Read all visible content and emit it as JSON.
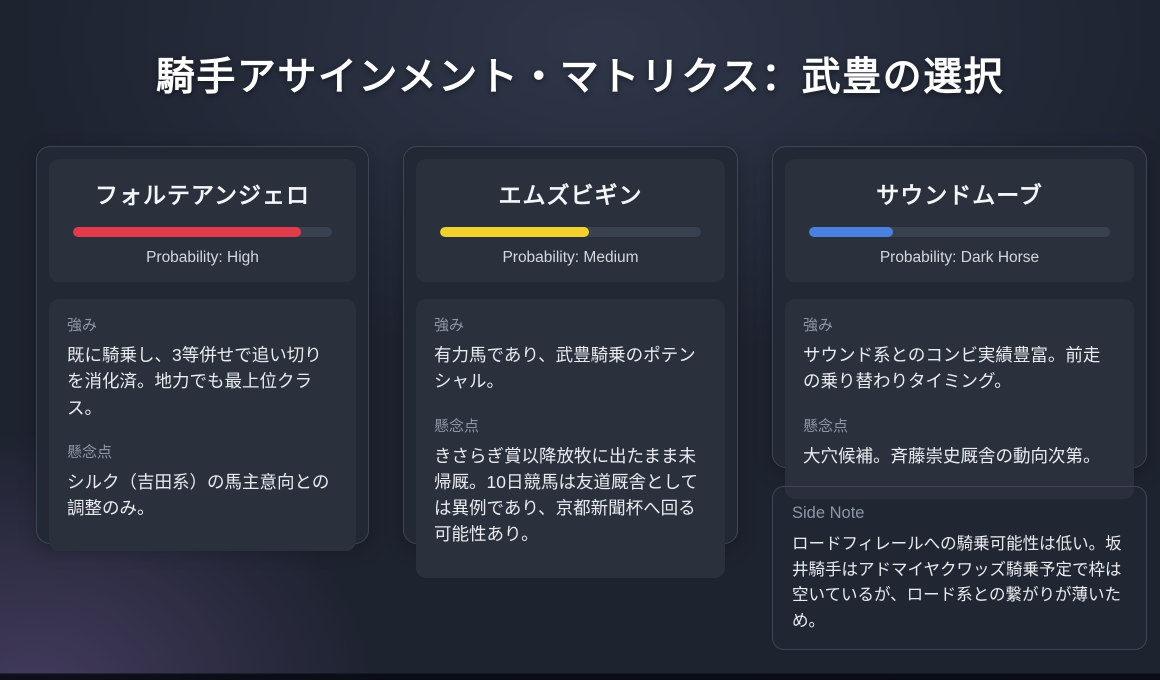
{
  "title": "騎手アサインメント・マトリクス：武豊の選択",
  "section_labels": {
    "strengths": "強み",
    "concerns": "懸念点"
  },
  "cards": [
    {
      "name": "フォルテアンジェロ",
      "probability_label": "Probability: High",
      "probability_level": "High",
      "bar_percent": 88,
      "bar_color": "#e23b4b",
      "strengths": "既に騎乗し、3等併せで追い切りを消化済。地力でも最上位クラス。",
      "concerns": "シルク（吉田系）の馬主意向との調整のみ。"
    },
    {
      "name": "エムズビギン",
      "probability_label": "Probability: Medium",
      "probability_level": "Medium",
      "bar_percent": 57,
      "bar_color": "#f2d12e",
      "strengths": "有力馬であり、武豊騎乗のポテンシャル。",
      "concerns": "きさらぎ賞以降放牧に出たまま未帰厩。10日競馬は友道厩舎としては異例であり、京都新聞杯へ回る可能性あり。"
    },
    {
      "name": "サウンドムーブ",
      "probability_label": "Probability: Dark Horse",
      "probability_level": "Dark Horse",
      "bar_percent": 28,
      "bar_color": "#4a80df",
      "strengths": "サウンド系とのコンビ実績豊富。前走の乗り替わりタイミング。",
      "concerns": "大穴候補。斉藤崇史厩舎の動向次第。"
    }
  ],
  "side_note": {
    "label": "Side Note",
    "text": "ロードフィレールへの騎乗可能性は低い。坂井騎手はアドマイヤクワッズ騎乗予定で枠は空いているが、ロード系との繋がりが薄いため。"
  }
}
